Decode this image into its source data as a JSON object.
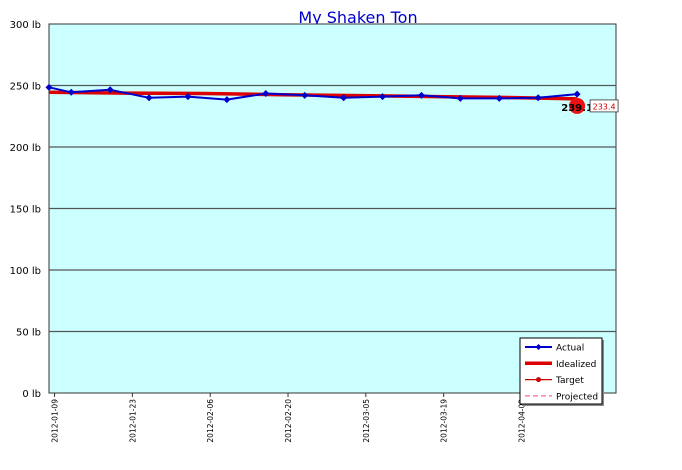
{
  "chart_data": {
    "type": "line",
    "title": "My Shaken Ton",
    "ylim": [
      0,
      300
    ],
    "y_ticks": [
      "0 lb",
      "50 lb",
      "100 lb",
      "150 lb",
      "200 lb",
      "250 lb",
      "300 lb"
    ],
    "y_tick_values": [
      0,
      50,
      100,
      150,
      200,
      250,
      300
    ],
    "x_range": [
      "2012-01-08",
      "2012-04-19"
    ],
    "x_ticks": [
      "2012-01-09",
      "2012-01-23",
      "2012-02-06",
      "2012-02-20",
      "2012-03-05",
      "2012-03-19",
      "2012-04-02"
    ],
    "grid": true,
    "legend_position": "bottom-right",
    "series": [
      {
        "name": "Actual",
        "color": "#0000cc",
        "style": "line-diamond",
        "x": [
          "2012-01-08",
          "2012-01-12",
          "2012-01-19",
          "2012-01-26",
          "2012-02-02",
          "2012-02-09",
          "2012-02-16",
          "2012-02-23",
          "2012-03-01",
          "2012-03-08",
          "2012-03-15",
          "2012-03-22",
          "2012-03-29",
          "2012-04-05",
          "2012-04-12"
        ],
        "values": [
          248.5,
          244.5,
          246.5,
          240,
          241,
          238.5,
          243.5,
          242,
          240,
          241,
          242,
          239.5,
          239.5,
          240,
          243
        ]
      },
      {
        "name": "Idealized",
        "color": "#dd0000",
        "style": "thick-line",
        "x": [
          "2012-01-08",
          "2012-01-22",
          "2012-02-05",
          "2012-02-19",
          "2012-03-04",
          "2012-03-18",
          "2012-04-01",
          "2012-04-12"
        ],
        "values": [
          244.5,
          243.8,
          243.5,
          242.5,
          241.8,
          241,
          240.2,
          239.1
        ]
      },
      {
        "name": "Target",
        "color": "#cc0000",
        "style": "line-dot",
        "x": [
          "2012-04-12"
        ],
        "values": [
          233.4
        ]
      },
      {
        "name": "Projected",
        "color": "#ff66aa",
        "style": "dashed",
        "x": [],
        "values": []
      }
    ],
    "annotations": [
      {
        "text": "239.1",
        "kind": "plain-label",
        "x": "2012-04-12",
        "value": 239.1
      },
      {
        "text": "233.4",
        "kind": "boxed-label",
        "x": "2012-04-12",
        "value": 233.4
      }
    ],
    "colors": {
      "plot_background": "#ccffff",
      "grid": "#555555",
      "title": "#0000cc",
      "target_marker": "#ee1111",
      "target_box_text": "#cc0000"
    }
  }
}
